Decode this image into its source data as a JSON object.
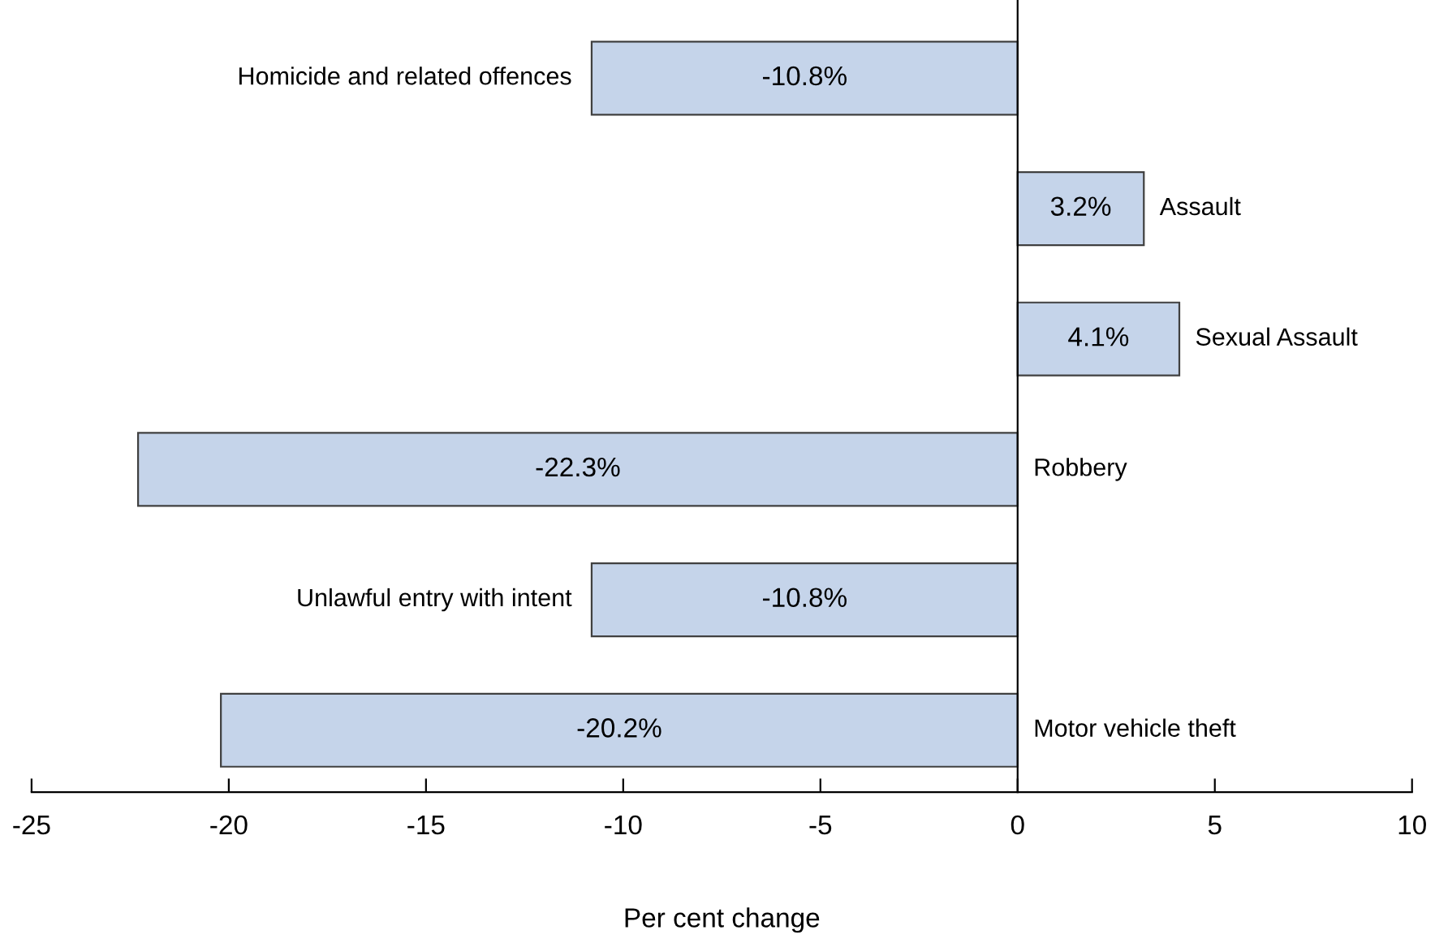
{
  "chart_data": {
    "type": "bar",
    "orientation": "horizontal",
    "xlabel": "Per cent change",
    "categories": [
      "Homicide and related offences",
      "Assault",
      "Sexual Assault",
      "Robbery",
      "Unlawful entry with intent",
      "Motor vehicle theft"
    ],
    "values": [
      -10.8,
      3.2,
      4.1,
      -22.3,
      -10.8,
      -20.2
    ],
    "value_labels": [
      "-10.8%",
      "3.2%",
      "4.1%",
      "-22.3%",
      "-10.8%",
      "-20.2%"
    ],
    "color": "#c5d4ea",
    "xlim": [
      -25,
      10
    ],
    "xticks": [
      -25,
      -20,
      -15,
      -10,
      -5,
      0,
      5,
      10
    ],
    "legend": false
  }
}
